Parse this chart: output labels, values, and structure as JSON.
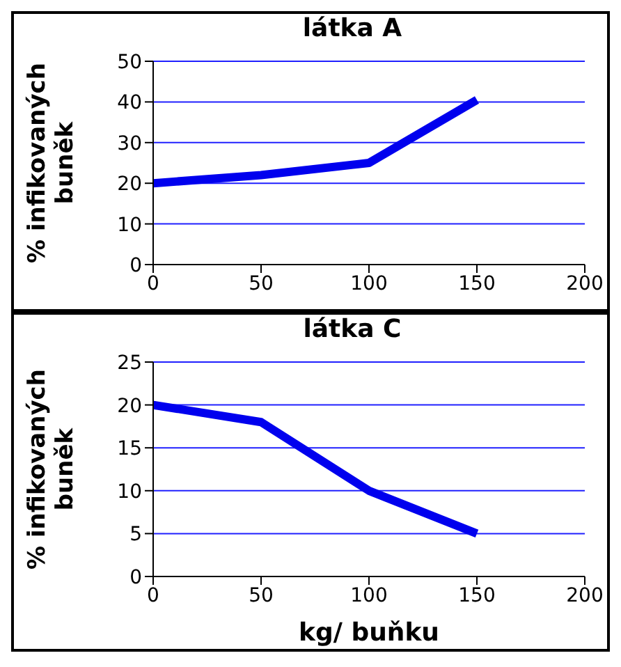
{
  "chart_data": [
    {
      "type": "line",
      "title": "látka A",
      "ylabel": "% infikovaných buněk",
      "x": [
        0,
        50,
        100,
        150
      ],
      "series": [
        {
          "color": "#0000ee",
          "values": [
            20,
            22,
            25,
            40.5
          ]
        }
      ],
      "xlim": [
        0,
        200
      ],
      "xticks": [
        0,
        50,
        100,
        150,
        200
      ],
      "ylim": [
        0,
        50
      ],
      "yticks": [
        0,
        10,
        20,
        30,
        40,
        50
      ],
      "grid": "y",
      "legend": false,
      "marker": "none"
    },
    {
      "type": "line",
      "title": "látka C",
      "xlabel": "kg/ buňku",
      "ylabel": "% infikovaných buněk",
      "x": [
        0,
        50,
        100,
        150
      ],
      "series": [
        {
          "color": "#0000ee",
          "values": [
            20,
            18,
            10,
            5
          ]
        }
      ],
      "xlim": [
        0,
        200
      ],
      "xticks": [
        0,
        50,
        100,
        150,
        200
      ],
      "ylim": [
        0,
        25
      ],
      "yticks": [
        0,
        5,
        10,
        15,
        20,
        25
      ],
      "grid": "y",
      "legend": false,
      "marker": "none"
    }
  ]
}
